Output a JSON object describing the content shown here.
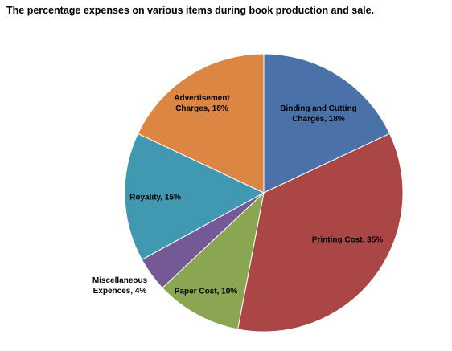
{
  "chart_data": {
    "type": "pie",
    "title": "The percentage expenses on various items  during book production and sale.",
    "slices": [
      {
        "category": "Binding and Cutting Charges",
        "value": 18,
        "label_lines": [
          "Binding and Cutting",
          "Charges, 18%"
        ],
        "color": "#4a72a8"
      },
      {
        "category": "Printing Cost",
        "value": 35,
        "label_lines": [
          "Printing Cost, 35%"
        ],
        "color": "#aa4645"
      },
      {
        "category": "Paper Cost",
        "value": 10,
        "label_lines": [
          "Paper Cost, 10%"
        ],
        "color": "#8aa652"
      },
      {
        "category": "Miscellaneous Expences",
        "value": 4,
        "label_lines": [
          "Miscellaneous",
          "Expences, 4%"
        ],
        "color": "#735a96"
      },
      {
        "category": "Royality",
        "value": 15,
        "label_lines": [
          "Royality, 15%"
        ],
        "color": "#4098b1"
      },
      {
        "category": "Advertisement Charges",
        "value": 18,
        "label_lines": [
          "Advertisement",
          "Charges, 18%"
        ],
        "color": "#db8643"
      }
    ],
    "legend": "none",
    "start_angle": "12 o'clock",
    "direction": "clockwise",
    "label_placement": "inside, except Miscellaneous Expences outside-left"
  }
}
